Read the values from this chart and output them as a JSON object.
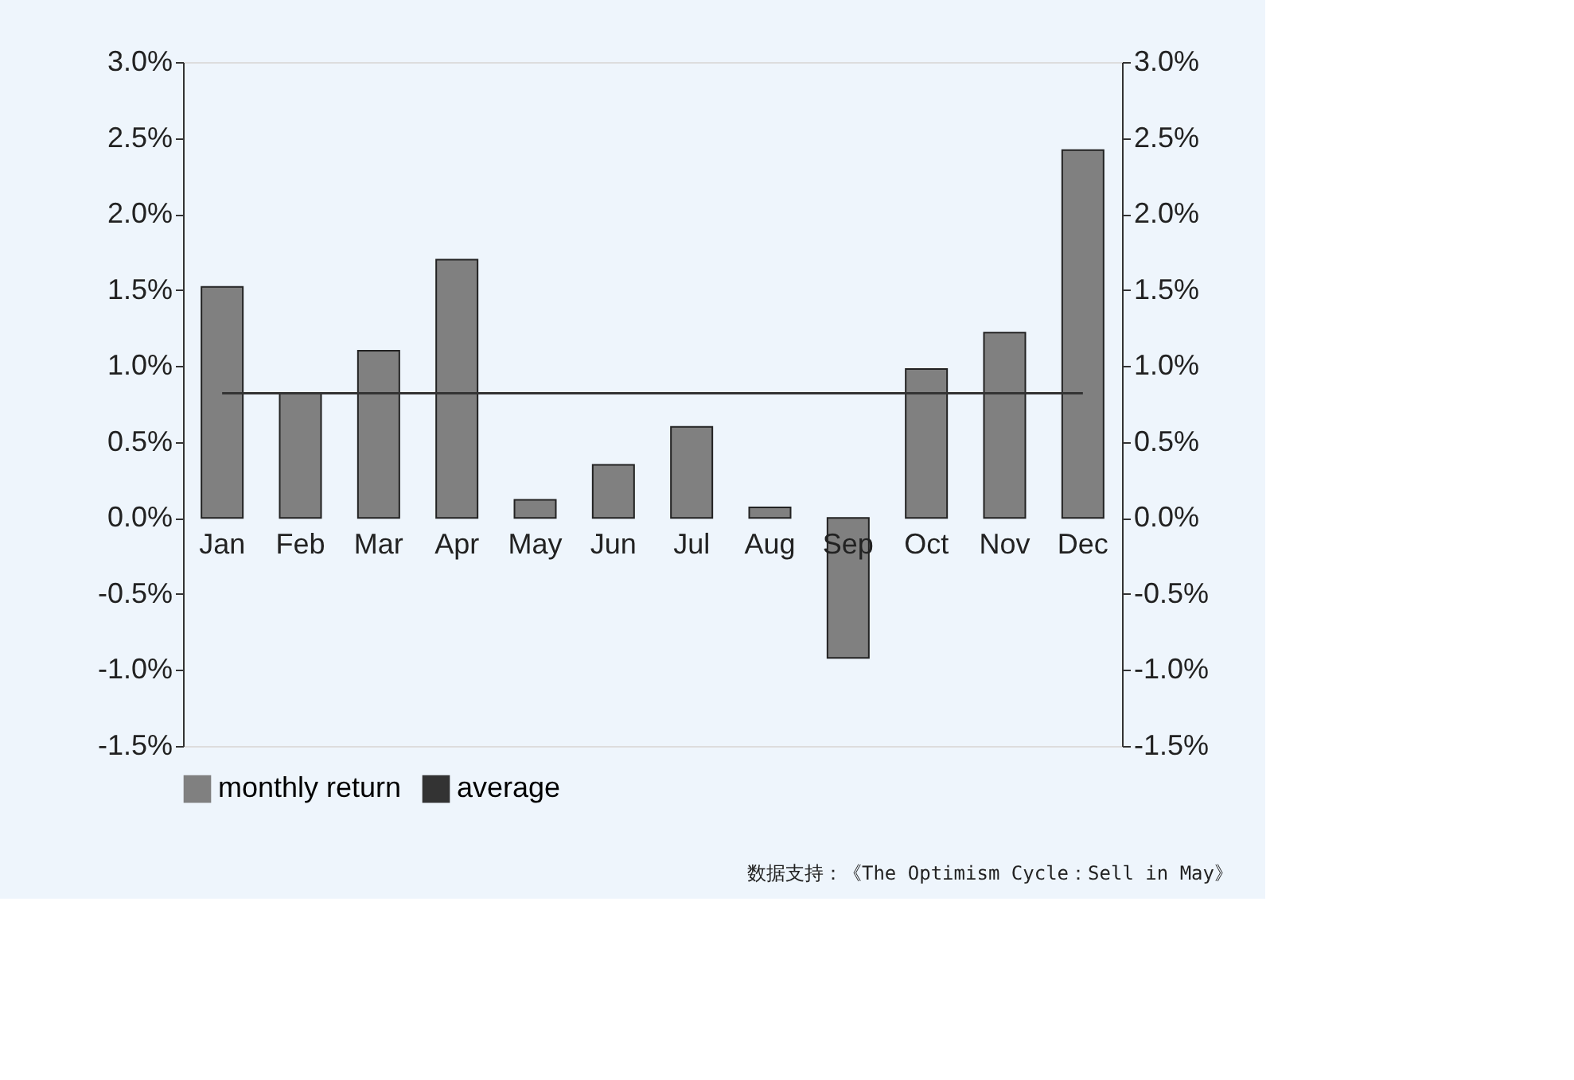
{
  "chart_data": {
    "type": "bar",
    "categories": [
      "Jan",
      "Feb",
      "Mar",
      "Apr",
      "May",
      "Jun",
      "Jul",
      "Aug",
      "Sep",
      "Oct",
      "Nov",
      "Dec"
    ],
    "series": [
      {
        "name": "monthly return",
        "color": "#808080",
        "values": [
          1.52,
          0.82,
          1.1,
          1.7,
          0.12,
          0.35,
          0.6,
          0.07,
          -0.92,
          0.98,
          1.22,
          2.42
        ]
      },
      {
        "name": "average",
        "type": "line",
        "color": "#333333",
        "values": [
          0.82,
          0.82,
          0.82,
          0.82,
          0.82,
          0.82,
          0.82,
          0.82,
          0.82,
          0.82,
          0.82,
          0.82
        ]
      }
    ],
    "ylim": [
      -1.5,
      3.0
    ],
    "yticks": [
      {
        "value": -1.5,
        "label": "-1.5%"
      },
      {
        "value": -1.0,
        "label": "-1.0%"
      },
      {
        "value": -0.5,
        "label": "-0.5%"
      },
      {
        "value": 0,
        "label": "0.0%"
      },
      {
        "value": 0.5,
        "label": "0.5%"
      },
      {
        "value": 1.0,
        "label": "1.0%"
      },
      {
        "value": 1.5,
        "label": "1.5%"
      },
      {
        "value": 2.0,
        "label": "2.0%"
      },
      {
        "value": 2.5,
        "label": "2.5%"
      },
      {
        "value": 3.0,
        "label": "3.0%"
      }
    ],
    "y2lim": [
      -1.5,
      3.0
    ],
    "y2ticks": [
      {
        "value": -1.5,
        "label": "-1.5%"
      },
      {
        "value": -1.0,
        "label": "-1.0%"
      },
      {
        "value": -0.5,
        "label": "-0.5%"
      },
      {
        "value": 0,
        "label": "0.0%"
      },
      {
        "value": 0.5,
        "label": "0.5%"
      },
      {
        "value": 1.0,
        "label": "1.0%"
      },
      {
        "value": 1.5,
        "label": "1.5%"
      },
      {
        "value": 2.0,
        "label": "2.0%"
      },
      {
        "value": 2.5,
        "label": "2.5%"
      },
      {
        "value": 3.0,
        "label": "3.0%"
      }
    ],
    "grid": false,
    "legend": "bottom",
    "annotations": [
      "数据支持：《The Optimism Cycle：Sell in May》"
    ]
  }
}
